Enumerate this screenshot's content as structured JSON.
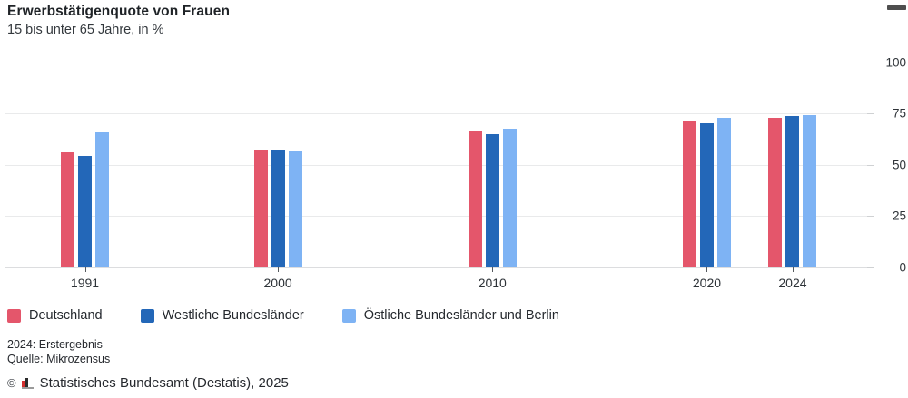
{
  "header": {
    "title": "Erwerbstätigenquote von Frauen",
    "subtitle": "15 bis unter 65 Jahre, in %"
  },
  "menu": {
    "icon": "hamburger-icon"
  },
  "chart_data": {
    "type": "bar",
    "title": "Erwerbstätigenquote von Frauen",
    "subtitle": "15 bis unter 65 Jahre, in %",
    "categories": [
      "1991",
      "2000",
      "2010",
      "2020",
      "2024"
    ],
    "category_years": [
      1991,
      2000,
      2010,
      2020,
      2024
    ],
    "x_axis_time_scale": true,
    "series": [
      {
        "name": "Deutschland",
        "color": "#e4566b",
        "values": [
          56,
          57.5,
          66,
          71,
          73
        ]
      },
      {
        "name": "Westliche Bundesländer",
        "color": "#2367b8",
        "values": [
          54,
          57,
          65,
          70,
          73.5
        ]
      },
      {
        "name": "Östliche Bundesländer und Berlin",
        "color": "#7eb3f4",
        "values": [
          65.5,
          56.5,
          67.5,
          73,
          74
        ]
      }
    ],
    "ylabel": "",
    "xlabel": "",
    "ylim": [
      0,
      100
    ],
    "yticks": [
      0,
      25,
      50,
      75,
      100
    ],
    "grid": true,
    "legend_position": "bottom"
  },
  "footnotes": {
    "line1": "2024: Erstergebnis",
    "line2": "Quelle: Mikrozensus"
  },
  "copyright": {
    "symbol": "©",
    "text": "Statistisches Bundesamt (Destatis), 2025"
  }
}
